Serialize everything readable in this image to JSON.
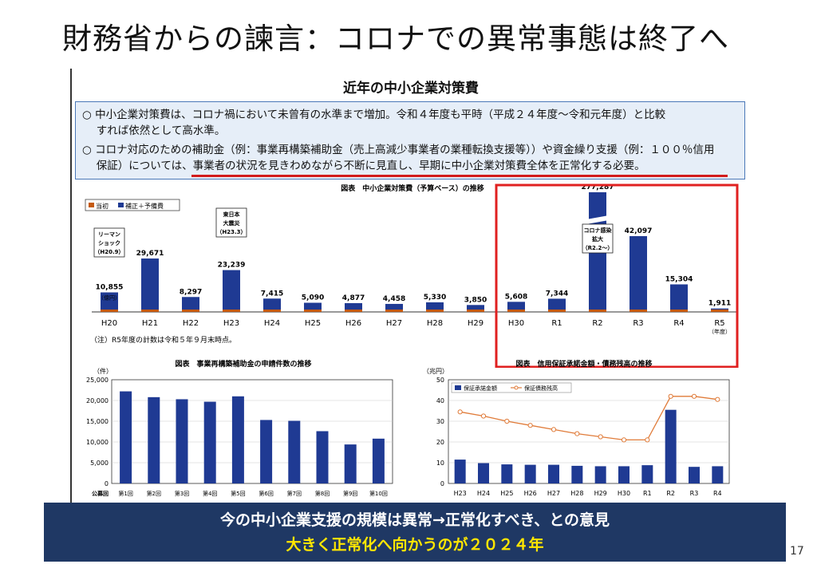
{
  "slide": {
    "title": "財務省からの諫言：コロナでの異常事態は終了へ",
    "page_number": "17"
  },
  "panel": {
    "title": "近年の中小企業対策費",
    "summary": {
      "line1": "○ 中小企業対策費は、コロナ禍において未曾有の水準まで増加。令和４年度も平時（平成２４年度～令和元年度）と比較",
      "line2": "　 すれば依然として高水準。",
      "line3": "○ コロナ対応のための補助金（例：事業再構築補助金（売上高減少事業者の業種転換支援等））や資金繰り支援（例：１００％信用",
      "line4": "　 保証）については、事業者の状況を見きわめながら不断に見直し、早期に中小企業対策費全体を正常化する必要。"
    }
  },
  "banner": {
    "line1": "今の中小企業支援の規模は異常→正常化すべき、との意見",
    "line2": "大きく正常化へ向かうのが２０２４年"
  },
  "colors": {
    "bar_blue": "#1f3a93",
    "bar_orange": "#c55a11",
    "line_orange": "#e07b39",
    "highlight_red": "#e02020",
    "banner_bg": "#1f3864",
    "banner_yellow": "#ffe600"
  },
  "chart_data": [
    {
      "type": "bar",
      "title": "図表　中小企業対策費（予算ベース）の推移",
      "legend": [
        "当初",
        "補正＋予備費"
      ],
      "categories": [
        "H20",
        "H21",
        "H22",
        "H23",
        "H24",
        "H25",
        "H26",
        "H27",
        "H28",
        "H29",
        "H30",
        "R1",
        "R2",
        "R3",
        "R4",
        "R5"
      ],
      "values": [
        10855,
        29671,
        8297,
        23239,
        7415,
        5090,
        4877,
        4458,
        5330,
        3850,
        5608,
        7344,
        277287,
        42097,
        15304,
        1911
      ],
      "value_labels": [
        "10,855",
        "29,671",
        "8,297",
        "23,239",
        "7,415",
        "5,090",
        "4,877",
        "4,458",
        "5,330",
        "3,850",
        "5,608",
        "7,344",
        "277,287",
        "42,097",
        "15,304",
        "1,911"
      ],
      "unit_label": "（億円）",
      "axis_break": true,
      "annotations": [
        {
          "category": "H20",
          "text_lines": [
            "リーマン",
            "ショック",
            "（H20.9）"
          ]
        },
        {
          "category": "H23",
          "text_lines": [
            "東日本",
            "大震災",
            "（H23.3）"
          ]
        },
        {
          "category": "R2",
          "text_lines": [
            "コロナ感染",
            "拡大",
            "（R2.2～）"
          ]
        }
      ],
      "x_suffix": "（年度）",
      "note": "（注）R5年度の計数は令和５年９月末時点。",
      "highlighted_range": [
        "H30",
        "R5"
      ]
    },
    {
      "type": "bar",
      "title": "図表　事業再構築補助金の申請件数の推移",
      "ylabel": "（件）",
      "xlabel": "公募回",
      "categories": [
        "第1回",
        "第2回",
        "第3回",
        "第4回",
        "第5回",
        "第6回",
        "第7回",
        "第8回",
        "第9回",
        "第10回"
      ],
      "values": [
        22200,
        20800,
        20300,
        19700,
        21000,
        15300,
        15100,
        12600,
        9400,
        10800
      ],
      "ylim": [
        0,
        25000
      ],
      "yticks": [
        "0",
        "5,000",
        "10,000",
        "15,000",
        "20,000",
        "25,000"
      ],
      "ytick_values": [
        0,
        5000,
        10000,
        15000,
        20000,
        25000
      ]
    },
    {
      "type": "bar_line",
      "title": "図表　信用保証承諾金額・債務残高の推移",
      "ylabel": "（兆円）",
      "categories": [
        "H23",
        "H24",
        "H25",
        "H26",
        "H27",
        "H28",
        "H29",
        "H30",
        "R1",
        "R2",
        "R3",
        "R4"
      ],
      "series": [
        {
          "name": "保証承諾金額",
          "type": "bar",
          "values": [
            11.5,
            9.8,
            9.2,
            9.0,
            9.0,
            8.5,
            8.3,
            8.3,
            8.8,
            35.5,
            8.0,
            8.3
          ]
        },
        {
          "name": "保証債務残高",
          "type": "line",
          "values": [
            34.5,
            32.5,
            30.0,
            28.0,
            26.0,
            24.0,
            22.5,
            21.0,
            21.0,
            42.0,
            42.0,
            40.5
          ]
        }
      ],
      "ylim": [
        0,
        50
      ],
      "yticks": [
        "0",
        "10",
        "20",
        "30",
        "40",
        "50"
      ],
      "ytick_values": [
        0,
        10,
        20,
        30,
        40,
        50
      ]
    }
  ]
}
